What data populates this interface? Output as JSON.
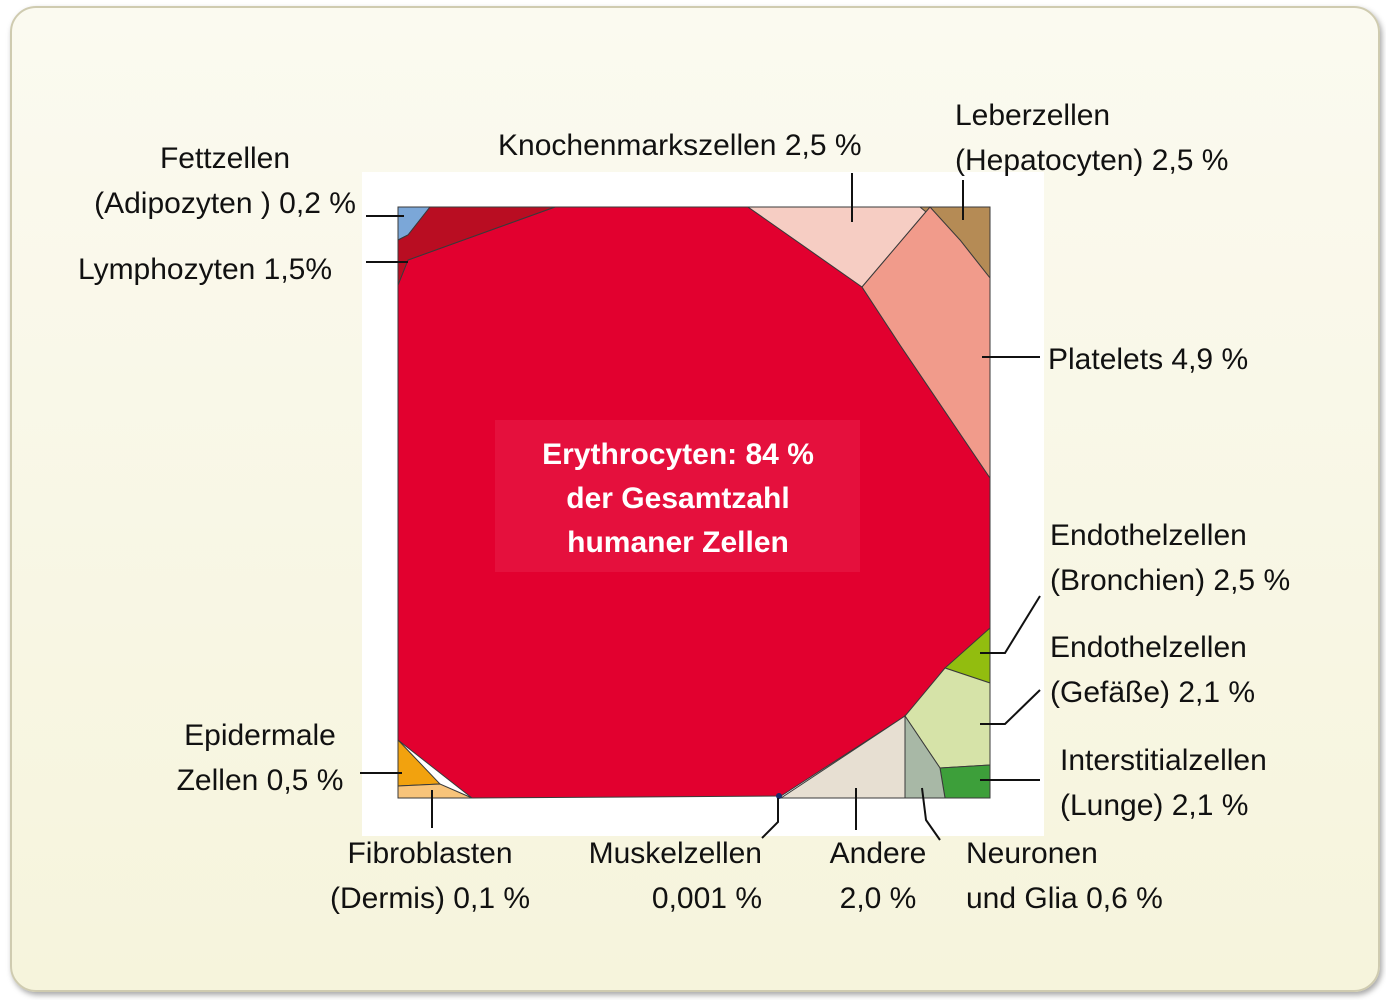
{
  "center": {
    "line1": "Erythrocyten: 84 %",
    "line2": "der Gesamtzahl",
    "line3": "humaner Zellen"
  },
  "cells": [
    {
      "id": "erythrocyten",
      "color": "#e2002f"
    },
    {
      "id": "fettzellen",
      "color": "#7ba7d8"
    },
    {
      "id": "lymphozyten",
      "color": "#b90d22"
    },
    {
      "id": "knochenmark",
      "color": "#f6cdc3"
    },
    {
      "id": "leberzellen",
      "color": "#b58b55"
    },
    {
      "id": "platelets",
      "color": "#f19b8b"
    },
    {
      "id": "endothel-bronchien",
      "color": "#92bd0f"
    },
    {
      "id": "endothel-gefaesse",
      "color": "#d6e3a8"
    },
    {
      "id": "interstitial",
      "color": "#3d9f3a"
    },
    {
      "id": "neuronen",
      "color": "#a8b8a6"
    },
    {
      "id": "andere",
      "color": "#e7dfd2"
    },
    {
      "id": "epidermal",
      "color": "#f2a20e"
    },
    {
      "id": "fibroblasten",
      "color": "#f8c47a"
    }
  ],
  "labels": {
    "fettzellen": {
      "line1": "Fettzellen",
      "line2": "(Adipozyten ) 0,2 %"
    },
    "lymphozyten": {
      "line1": "Lymphozyten  1,5%"
    },
    "knochenmark": {
      "line1": "Knochenmarkszellen  2,5 %"
    },
    "leberzellen": {
      "line1": "Leberzellen",
      "line2": "(Hepatocyten) 2,5 %"
    },
    "platelets": {
      "line1": "Platelets  4,9 %"
    },
    "endothel_bronchien": {
      "line1": "Endothelzellen",
      "line2": "(Bronchien) 2,5 %"
    },
    "endothel_gefaesse": {
      "line1": "Endothelzellen",
      "line2": "(Gefäße) 2,1 %"
    },
    "interstitial": {
      "line1": "Interstitialzellen",
      "line2": "(Lunge) 2,1 %"
    },
    "epidermal": {
      "line1": "Epidermale",
      "line2": "Zellen 0,5 %"
    },
    "fibroblasten": {
      "line1": "Fibroblasten",
      "line2": "(Dermis) 0,1 %"
    },
    "muskel": {
      "line1": "Muskelzellen",
      "line2": "0,001 %"
    },
    "andere": {
      "line1": "Andere",
      "line2": "2,0 %"
    },
    "neuronen": {
      "line1": "Neuronen",
      "line2": "und Glia 0,6 %"
    }
  }
}
